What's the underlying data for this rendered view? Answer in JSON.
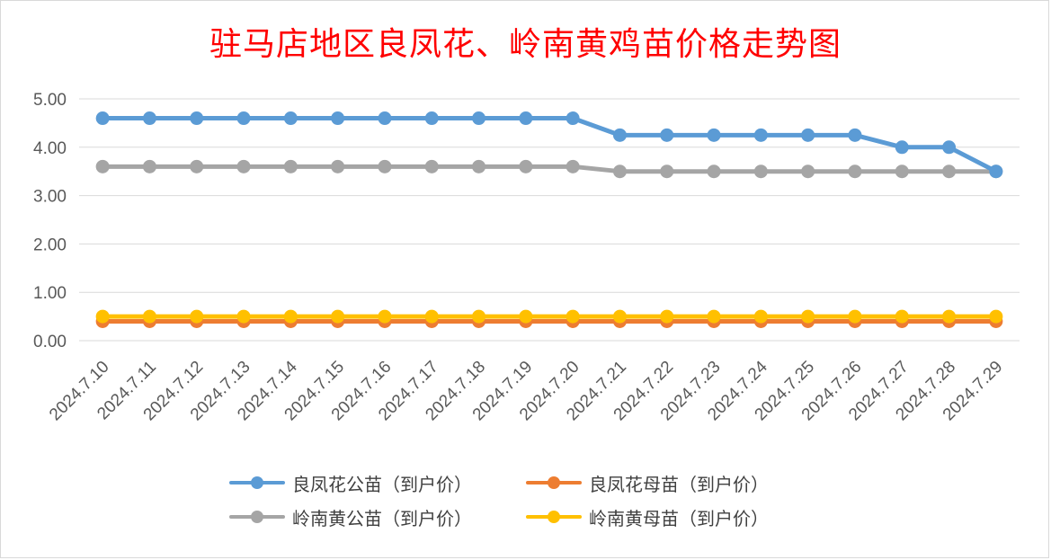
{
  "chart_data": {
    "type": "line",
    "title": "驻马店地区良凤花、岭南黄鸡苗价格走势图",
    "categories": [
      "2024.7.10",
      "2024.7.11",
      "2024.7.12",
      "2024.7.13",
      "2024.7.14",
      "2024.7.15",
      "2024.7.16",
      "2024.7.17",
      "2024.7.18",
      "2024.7.19",
      "2024.7.20",
      "2024.7.21",
      "2024.7.22",
      "2024.7.23",
      "2024.7.24",
      "2024.7.25",
      "2024.7.26",
      "2024.7.27",
      "2024.7.28",
      "2024.7.29"
    ],
    "ylim": [
      0,
      5
    ],
    "yticks": [
      "0.00",
      "1.00",
      "2.00",
      "3.00",
      "4.00",
      "5.00"
    ],
    "grid": true,
    "legend_position": "bottom",
    "series": [
      {
        "name": "良凤花公苗（到户价）",
        "color": "#5b9bd5",
        "values": [
          4.6,
          4.6,
          4.6,
          4.6,
          4.6,
          4.6,
          4.6,
          4.6,
          4.6,
          4.6,
          4.6,
          4.25,
          4.25,
          4.25,
          4.25,
          4.25,
          4.25,
          4.0,
          4.0,
          3.5
        ]
      },
      {
        "name": "良凤花母苗（到户价）",
        "color": "#ed7d31",
        "values": [
          0.4,
          0.4,
          0.4,
          0.4,
          0.4,
          0.4,
          0.4,
          0.4,
          0.4,
          0.4,
          0.4,
          0.4,
          0.4,
          0.4,
          0.4,
          0.4,
          0.4,
          0.4,
          0.4,
          0.4
        ]
      },
      {
        "name": "岭南黄公苗（到户价）",
        "color": "#a5a5a5",
        "values": [
          3.6,
          3.6,
          3.6,
          3.6,
          3.6,
          3.6,
          3.6,
          3.6,
          3.6,
          3.6,
          3.6,
          3.5,
          3.5,
          3.5,
          3.5,
          3.5,
          3.5,
          3.5,
          3.5,
          3.5
        ]
      },
      {
        "name": "岭南黄母苗（到户价）",
        "color": "#ffc000",
        "values": [
          0.5,
          0.5,
          0.5,
          0.5,
          0.5,
          0.5,
          0.5,
          0.5,
          0.5,
          0.5,
          0.5,
          0.5,
          0.5,
          0.5,
          0.5,
          0.5,
          0.5,
          0.5,
          0.5,
          0.5
        ]
      }
    ]
  }
}
